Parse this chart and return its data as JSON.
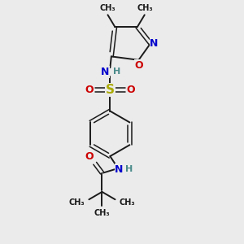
{
  "background_color": "#ebebeb",
  "bond_color": "#1a1a1a",
  "figsize": [
    3.0,
    3.0
  ],
  "dpi": 100,
  "atoms": {
    "N_blue": "#0000cc",
    "O_red": "#cc0000",
    "S_yellow": "#aaaa00",
    "C_black": "#1a1a1a",
    "H_teal": "#4a8a8a"
  },
  "layout": {
    "xlim": [
      0,
      10
    ],
    "ylim": [
      0,
      10
    ]
  }
}
